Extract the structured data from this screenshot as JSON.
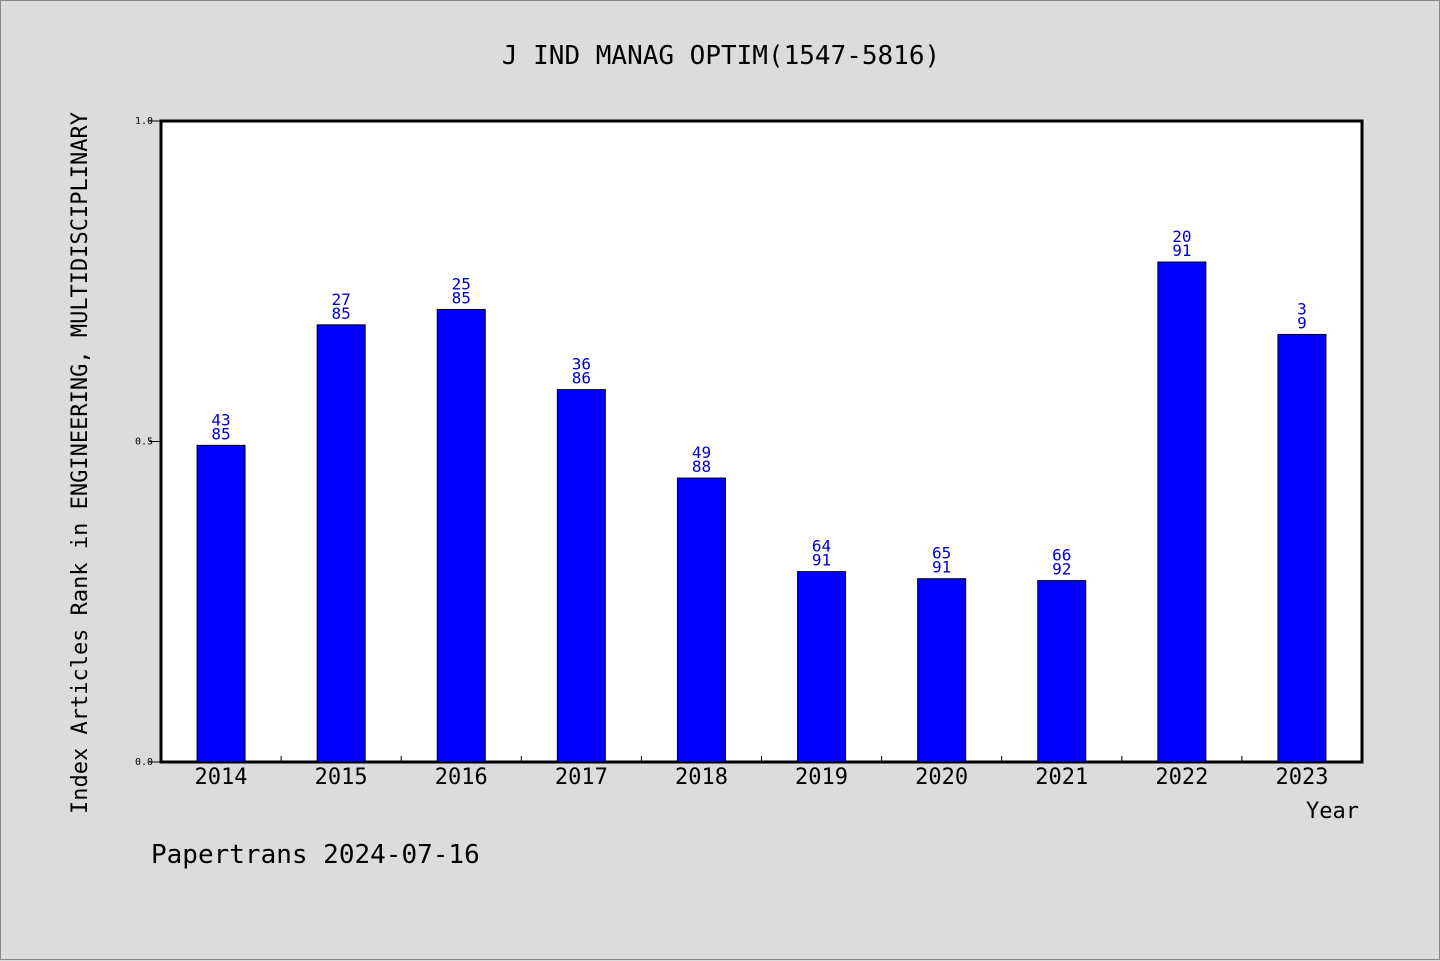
{
  "chart_data": {
    "type": "bar",
    "title": "J IND MANAG OPTIM(1547-5816)",
    "ylabel": "Index Articles Rank in ENGINEERING, MULTIDISCIPLINARY",
    "xlabel": "Year",
    "ylim": [
      0.0,
      1.0
    ],
    "yticks": [
      "0.0",
      "0.5",
      "1.0"
    ],
    "categories": [
      "2014",
      "2015",
      "2016",
      "2017",
      "2018",
      "2019",
      "2020",
      "2021",
      "2022",
      "2023"
    ],
    "values": [
      0.494,
      0.682,
      0.706,
      0.581,
      0.443,
      0.297,
      0.286,
      0.283,
      0.78,
      0.667
    ],
    "labels_top": [
      "43",
      "27",
      "25",
      "36",
      "49",
      "64",
      "65",
      "66",
      "20",
      "3"
    ],
    "labels_bottom": [
      "85",
      "85",
      "85",
      "86",
      "88",
      "91",
      "91",
      "92",
      "91",
      "9"
    ],
    "bar_color": "#0000ff",
    "label_color": "#0000cc",
    "grid": false
  },
  "footer": "Papertrans 2024-07-16"
}
